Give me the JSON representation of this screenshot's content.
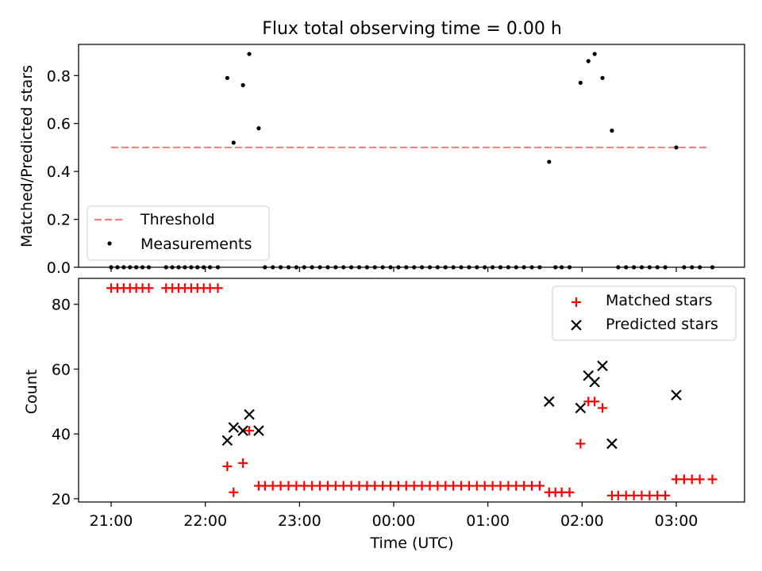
{
  "title": "Flux total observing time = 0.00 h",
  "chart_data": [
    {
      "type": "scatter",
      "ylabel": "Matched/Predicted stars",
      "ylim": [
        0,
        0.93
      ],
      "yticks": [
        0.0,
        0.2,
        0.4,
        0.6,
        0.8
      ],
      "ytick_labels": [
        "0.0",
        "0.2",
        "0.4",
        "0.6",
        "0.8"
      ],
      "grid": false,
      "legend_placement": "lower-left",
      "series": [
        {
          "name": "Threshold",
          "kind": "line",
          "color": "#ff7f7f",
          "dash": true,
          "points": [
            [
              "21:00",
              0.5
            ],
            [
              "03:21",
              0.5
            ]
          ]
        },
        {
          "name": "Measurements",
          "kind": "scatter",
          "color": "#000000",
          "points": [
            [
              "21:00",
              0
            ],
            [
              "21:04",
              0
            ],
            [
              "21:08",
              0
            ],
            [
              "21:12",
              0
            ],
            [
              "21:16",
              0
            ],
            [
              "21:20",
              0
            ],
            [
              "21:24",
              0
            ],
            [
              "21:35",
              0
            ],
            [
              "21:39",
              0
            ],
            [
              "21:43",
              0
            ],
            [
              "21:47",
              0
            ],
            [
              "21:51",
              0
            ],
            [
              "21:55",
              0
            ],
            [
              "21:59",
              0
            ],
            [
              "22:03",
              0
            ],
            [
              "22:08",
              0
            ],
            [
              "22:14",
              0.79
            ],
            [
              "22:18",
              0.52
            ],
            [
              "22:24",
              0.76
            ],
            [
              "22:28",
              0.89
            ],
            [
              "22:34",
              0.58
            ],
            [
              "22:38",
              0
            ],
            [
              "22:43",
              0
            ],
            [
              "22:48",
              0
            ],
            [
              "22:53",
              0
            ],
            [
              "22:58",
              0
            ],
            [
              "23:03",
              0
            ],
            [
              "23:08",
              0
            ],
            [
              "23:13",
              0
            ],
            [
              "23:18",
              0
            ],
            [
              "23:23",
              0
            ],
            [
              "23:28",
              0
            ],
            [
              "23:33",
              0
            ],
            [
              "23:38",
              0
            ],
            [
              "23:43",
              0
            ],
            [
              "23:48",
              0
            ],
            [
              "23:53",
              0
            ],
            [
              "23:58",
              0
            ],
            [
              "00:03",
              0
            ],
            [
              "00:08",
              0
            ],
            [
              "00:13",
              0
            ],
            [
              "00:18",
              0
            ],
            [
              "00:23",
              0
            ],
            [
              "00:28",
              0
            ],
            [
              "00:33",
              0
            ],
            [
              "00:38",
              0
            ],
            [
              "00:43",
              0
            ],
            [
              "00:48",
              0
            ],
            [
              "00:53",
              0
            ],
            [
              "00:58",
              0
            ],
            [
              "01:03",
              0
            ],
            [
              "01:08",
              0
            ],
            [
              "01:13",
              0
            ],
            [
              "01:18",
              0
            ],
            [
              "01:23",
              0
            ],
            [
              "01:28",
              0
            ],
            [
              "01:33",
              0
            ],
            [
              "01:39",
              0.44
            ],
            [
              "01:43",
              0
            ],
            [
              "01:47",
              0
            ],
            [
              "01:52",
              0
            ],
            [
              "01:59",
              0.77
            ],
            [
              "02:04",
              0.86
            ],
            [
              "02:08",
              0.89
            ],
            [
              "02:13",
              0.79
            ],
            [
              "02:19",
              0.57
            ],
            [
              "02:23",
              0
            ],
            [
              "02:28",
              0
            ],
            [
              "02:33",
              0
            ],
            [
              "02:38",
              0
            ],
            [
              "02:43",
              0
            ],
            [
              "02:48",
              0
            ],
            [
              "02:53",
              0
            ],
            [
              "03:00",
              0.5
            ],
            [
              "03:05",
              0
            ],
            [
              "03:10",
              0
            ],
            [
              "03:15",
              0
            ],
            [
              "03:23",
              0
            ]
          ]
        }
      ]
    },
    {
      "type": "scatter",
      "xlabel": "Time (UTC)",
      "ylabel": "Count",
      "ylim": [
        19,
        88
      ],
      "yticks": [
        20,
        40,
        60,
        80
      ],
      "ytick_labels": [
        "20",
        "40",
        "60",
        "80"
      ],
      "xtick_labels": [
        "21:00",
        "22:00",
        "23:00",
        "00:00",
        "01:00",
        "02:00",
        "03:00"
      ],
      "grid": false,
      "legend_placement": "upper-right",
      "series": [
        {
          "name": "Matched stars",
          "kind": "plus",
          "color": "#ff0000",
          "points": [
            [
              "21:00",
              85
            ],
            [
              "21:04",
              85
            ],
            [
              "21:08",
              85
            ],
            [
              "21:12",
              85
            ],
            [
              "21:16",
              85
            ],
            [
              "21:20",
              85
            ],
            [
              "21:24",
              85
            ],
            [
              "21:35",
              85
            ],
            [
              "21:39",
              85
            ],
            [
              "21:43",
              85
            ],
            [
              "21:47",
              85
            ],
            [
              "21:51",
              85
            ],
            [
              "21:55",
              85
            ],
            [
              "21:59",
              85
            ],
            [
              "22:03",
              85
            ],
            [
              "22:08",
              85
            ],
            [
              "22:14",
              30
            ],
            [
              "22:18",
              22
            ],
            [
              "22:24",
              31
            ],
            [
              "22:28",
              41
            ],
            [
              "22:34",
              24
            ],
            [
              "22:38",
              24
            ],
            [
              "22:43",
              24
            ],
            [
              "22:48",
              24
            ],
            [
              "22:53",
              24
            ],
            [
              "22:58",
              24
            ],
            [
              "23:03",
              24
            ],
            [
              "23:08",
              24
            ],
            [
              "23:13",
              24
            ],
            [
              "23:18",
              24
            ],
            [
              "23:23",
              24
            ],
            [
              "23:28",
              24
            ],
            [
              "23:33",
              24
            ],
            [
              "23:38",
              24
            ],
            [
              "23:43",
              24
            ],
            [
              "23:48",
              24
            ],
            [
              "23:53",
              24
            ],
            [
              "23:58",
              24
            ],
            [
              "00:03",
              24
            ],
            [
              "00:08",
              24
            ],
            [
              "00:13",
              24
            ],
            [
              "00:18",
              24
            ],
            [
              "00:23",
              24
            ],
            [
              "00:28",
              24
            ],
            [
              "00:33",
              24
            ],
            [
              "00:38",
              24
            ],
            [
              "00:43",
              24
            ],
            [
              "00:48",
              24
            ],
            [
              "00:53",
              24
            ],
            [
              "00:58",
              24
            ],
            [
              "01:03",
              24
            ],
            [
              "01:08",
              24
            ],
            [
              "01:13",
              24
            ],
            [
              "01:18",
              24
            ],
            [
              "01:23",
              24
            ],
            [
              "01:28",
              24
            ],
            [
              "01:33",
              24
            ],
            [
              "01:39",
              22
            ],
            [
              "01:43",
              22
            ],
            [
              "01:47",
              22
            ],
            [
              "01:52",
              22
            ],
            [
              "01:59",
              37
            ],
            [
              "02:04",
              50
            ],
            [
              "02:08",
              50
            ],
            [
              "02:13",
              48
            ],
            [
              "02:19",
              21
            ],
            [
              "02:23",
              21
            ],
            [
              "02:28",
              21
            ],
            [
              "02:33",
              21
            ],
            [
              "02:38",
              21
            ],
            [
              "02:43",
              21
            ],
            [
              "02:48",
              21
            ],
            [
              "02:53",
              21
            ],
            [
              "03:00",
              26
            ],
            [
              "03:05",
              26
            ],
            [
              "03:10",
              26
            ],
            [
              "03:15",
              26
            ],
            [
              "03:23",
              26
            ]
          ]
        },
        {
          "name": "Predicted stars",
          "kind": "x",
          "color": "#000000",
          "points": [
            [
              "22:14",
              38
            ],
            [
              "22:18",
              42
            ],
            [
              "22:24",
              41
            ],
            [
              "22:28",
              46
            ],
            [
              "22:34",
              41
            ],
            [
              "01:39",
              50
            ],
            [
              "01:59",
              48
            ],
            [
              "02:04",
              58
            ],
            [
              "02:08",
              56
            ],
            [
              "02:13",
              61
            ],
            [
              "02:19",
              37
            ],
            [
              "03:00",
              52
            ]
          ]
        }
      ]
    }
  ]
}
